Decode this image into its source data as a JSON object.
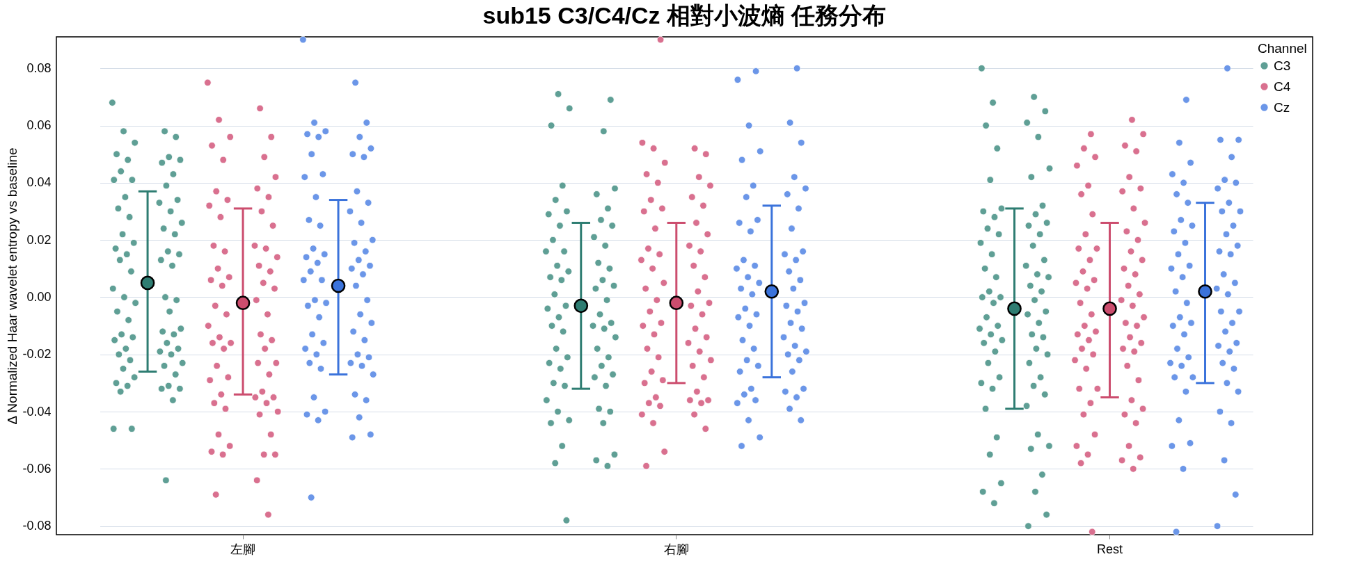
{
  "chart_data": {
    "type": "scatter",
    "title": "sub15 C3/C4/Cz 相對小波熵 任務分布",
    "ylabel": "Δ Normalized Haar wavelet entropy vs baseline",
    "legend_title": "Channel",
    "legend": "top right",
    "grid": "y",
    "marker": "circle",
    "categories": [
      "左腳",
      "右腳",
      "Rest"
    ],
    "ylim": [
      -0.083,
      0.091
    ],
    "yticks": [
      -0.08,
      -0.06,
      -0.04,
      -0.02,
      {
        "value": 0,
        "label": "0.00"
      },
      0.02,
      0.04,
      0.06,
      0.08
    ],
    "series": [
      {
        "name": "C3",
        "color": "#5f9f95",
        "x": [
          "左腳",
          "左腳",
          "左腳",
          "左腳",
          "左腳",
          "左腳",
          "左腳",
          "左腳",
          "左腳",
          "左腳",
          "左腳",
          "左腳",
          "左腳",
          "左腳",
          "左腳",
          "左腳",
          "左腳",
          "左腳",
          "左腳",
          "左腳",
          "左腳",
          "左腳",
          "左腳",
          "左腳",
          "左腳",
          "左腳",
          "左腳",
          "左腳",
          "左腳",
          "左腳",
          "左腳",
          "左腳",
          "左腳",
          "左腳",
          "左腳",
          "左腳",
          "左腳",
          "左腳",
          "左腳",
          "左腳",
          "左腳",
          "左腳",
          "左腳",
          "左腳",
          "左腳",
          "左腳",
          "左腳",
          "左腳",
          "左腳",
          "左腳",
          "左腳",
          "左腳",
          "左腳",
          "左腳",
          "左腳",
          "左腳",
          "左腳",
          "左腳",
          "左腳",
          "左腳",
          "左腳",
          "左腳",
          "左腳",
          "左腳",
          "左腳",
          "左腳",
          "左腳",
          "左腳",
          "左腳",
          "左腳",
          "右腳",
          "右腳",
          "右腳",
          "右腳",
          "右腳",
          "右腳",
          "右腳",
          "右腳",
          "右腳",
          "右腳",
          "右腳",
          "右腳",
          "右腳",
          "右腳",
          "右腳",
          "右腳",
          "右腳",
          "右腳",
          "右腳",
          "右腳",
          "右腳",
          "右腳",
          "右腳",
          "右腳",
          "右腳",
          "右腳",
          "右腳",
          "右腳",
          "右腳",
          "右腳",
          "右腳",
          "右腳",
          "右腳",
          "右腳",
          "右腳",
          "右腳",
          "右腳",
          "右腳",
          "右腳",
          "右腳",
          "右腳",
          "右腳",
          "右腳",
          "右腳",
          "右腳",
          "右腳",
          "右腳",
          "右腳",
          "右腳",
          "右腳",
          "右腳",
          "右腳",
          "右腳",
          "右腳",
          "右腳",
          "右腳",
          "右腳",
          "右腳",
          "右腳",
          "右腳",
          "右腳",
          "右腳",
          "右腳",
          "右腳",
          "右腳",
          "右腳",
          "Rest",
          "Rest",
          "Rest",
          "Rest",
          "Rest",
          "Rest",
          "Rest",
          "Rest",
          "Rest",
          "Rest",
          "Rest",
          "Rest",
          "Rest",
          "Rest",
          "Rest",
          "Rest",
          "Rest",
          "Rest",
          "Rest",
          "Rest",
          "Rest",
          "Rest",
          "Rest",
          "Rest",
          "Rest",
          "Rest",
          "Rest",
          "Rest",
          "Rest",
          "Rest",
          "Rest",
          "Rest",
          "Rest",
          "Rest",
          "Rest",
          "Rest",
          "Rest",
          "Rest",
          "Rest",
          "Rest",
          "Rest",
          "Rest",
          "Rest",
          "Rest",
          "Rest",
          "Rest",
          "Rest",
          "Rest",
          "Rest",
          "Rest",
          "Rest",
          "Rest",
          "Rest",
          "Rest",
          "Rest",
          "Rest",
          "Rest",
          "Rest",
          "Rest",
          "Rest",
          "Rest",
          "Rest",
          "Rest",
          "Rest",
          "Rest",
          "Rest",
          "Rest",
          "Rest",
          "Rest",
          "Rest",
          "Rest",
          "Rest",
          "Rest"
        ],
        "values": [
          0.068,
          0.058,
          0.058,
          0.056,
          0.054,
          0.05,
          0.049,
          0.048,
          0.048,
          0.047,
          0.044,
          0.043,
          0.041,
          0.041,
          0.039,
          0.035,
          0.034,
          0.033,
          0.031,
          0.03,
          0.028,
          0.026,
          0.024,
          0.022,
          0.022,
          0.019,
          0.017,
          0.016,
          0.015,
          0.015,
          0.013,
          0.013,
          0.011,
          0.009,
          0.003,
          0.0,
          0.0,
          -0.001,
          -0.002,
          -0.005,
          -0.005,
          -0.008,
          -0.011,
          -0.012,
          -0.013,
          -0.013,
          -0.014,
          -0.015,
          -0.016,
          -0.018,
          -0.018,
          -0.019,
          -0.02,
          -0.02,
          -0.022,
          -0.023,
          -0.024,
          -0.025,
          -0.027,
          -0.028,
          -0.03,
          -0.031,
          -0.031,
          -0.032,
          -0.032,
          -0.033,
          -0.036,
          -0.046,
          -0.046,
          -0.064,
          0.071,
          0.069,
          0.066,
          0.06,
          0.058,
          0.039,
          0.038,
          0.036,
          0.034,
          0.031,
          0.03,
          0.029,
          0.027,
          0.025,
          0.025,
          0.021,
          0.02,
          0.018,
          0.016,
          0.016,
          0.012,
          0.011,
          0.01,
          0.009,
          0.007,
          0.006,
          0.006,
          0.004,
          0.003,
          0.001,
          -0.001,
          -0.003,
          -0.004,
          -0.006,
          -0.007,
          -0.009,
          -0.01,
          -0.01,
          -0.011,
          -0.012,
          -0.014,
          -0.018,
          -0.018,
          -0.021,
          -0.021,
          -0.023,
          -0.024,
          -0.025,
          -0.027,
          -0.028,
          -0.03,
          -0.031,
          -0.031,
          -0.036,
          -0.039,
          -0.04,
          -0.04,
          -0.043,
          -0.044,
          -0.044,
          -0.052,
          -0.055,
          -0.057,
          -0.058,
          -0.059,
          -0.078,
          0.08,
          0.07,
          0.068,
          0.065,
          0.061,
          0.06,
          0.056,
          0.052,
          0.045,
          0.042,
          0.041,
          0.032,
          0.031,
          0.03,
          0.029,
          0.028,
          0.026,
          0.025,
          0.024,
          0.022,
          0.022,
          0.019,
          0.018,
          0.015,
          0.013,
          0.011,
          0.01,
          0.008,
          0.007,
          0.007,
          0.004,
          0.002,
          0.002,
          0.0,
          0.0,
          -0.001,
          -0.002,
          -0.005,
          -0.006,
          -0.007,
          -0.009,
          -0.01,
          -0.011,
          -0.013,
          -0.013,
          -0.014,
          -0.015,
          -0.016,
          -0.018,
          -0.019,
          -0.02,
          -0.023,
          -0.023,
          -0.028,
          -0.028,
          -0.03,
          -0.031,
          -0.032,
          -0.034,
          -0.038,
          -0.039,
          -0.048,
          -0.049,
          -0.052,
          -0.053,
          -0.055,
          -0.062,
          -0.065,
          -0.068,
          -0.068,
          -0.072,
          -0.076,
          -0.08
        ]
      },
      {
        "name": "C4",
        "color": "#d9708f",
        "x": [
          "左腳",
          "左腳",
          "左腳",
          "左腳",
          "左腳",
          "左腳",
          "左腳",
          "左腳",
          "左腳",
          "左腳",
          "左腳",
          "左腳",
          "左腳",
          "左腳",
          "左腳",
          "左腳",
          "左腳",
          "左腳",
          "左腳",
          "左腳",
          "左腳",
          "左腳",
          "左腳",
          "左腳",
          "左腳",
          "左腳",
          "左腳",
          "左腳",
          "左腳",
          "左腳",
          "左腳",
          "左腳",
          "左腳",
          "左腳",
          "左腳",
          "左腳",
          "左腳",
          "左腳",
          "左腳",
          "左腳",
          "左腳",
          "左腳",
          "左腳",
          "左腳",
          "左腳",
          "左腳",
          "左腳",
          "左腳",
          "左腳",
          "左腳",
          "左腳",
          "左腳",
          "左腳",
          "左腳",
          "左腳",
          "左腳",
          "左腳",
          "左腳",
          "左腳",
          "左腳",
          "左腳",
          "左腳",
          "左腳",
          "左腳",
          "左腳",
          "左腳",
          "左腳",
          "右腳",
          "右腳",
          "右腳",
          "右腳",
          "右腳",
          "右腳",
          "右腳",
          "右腳",
          "右腳",
          "右腳",
          "右腳",
          "右腳",
          "右腳",
          "右腳",
          "右腳",
          "右腳",
          "右腳",
          "右腳",
          "右腳",
          "右腳",
          "右腳",
          "右腳",
          "右腳",
          "右腳",
          "右腳",
          "右腳",
          "右腳",
          "右腳",
          "右腳",
          "右腳",
          "右腳",
          "右腳",
          "右腳",
          "右腳",
          "右腳",
          "右腳",
          "右腳",
          "右腳",
          "右腳",
          "右腳",
          "右腳",
          "右腳",
          "右腳",
          "右腳",
          "右腳",
          "右腳",
          "右腳",
          "右腳",
          "右腳",
          "右腳",
          "右腳",
          "右腳",
          "右腳",
          "右腳",
          "右腳",
          "右腳",
          "右腳",
          "右腳",
          "右腳",
          "右腳",
          "右腳",
          "右腳",
          "Rest",
          "Rest",
          "Rest",
          "Rest",
          "Rest",
          "Rest",
          "Rest",
          "Rest",
          "Rest",
          "Rest",
          "Rest",
          "Rest",
          "Rest",
          "Rest",
          "Rest",
          "Rest",
          "Rest",
          "Rest",
          "Rest",
          "Rest",
          "Rest",
          "Rest",
          "Rest",
          "Rest",
          "Rest",
          "Rest",
          "Rest",
          "Rest",
          "Rest",
          "Rest",
          "Rest",
          "Rest",
          "Rest",
          "Rest",
          "Rest",
          "Rest",
          "Rest",
          "Rest",
          "Rest",
          "Rest",
          "Rest",
          "Rest",
          "Rest",
          "Rest",
          "Rest",
          "Rest",
          "Rest",
          "Rest",
          "Rest",
          "Rest",
          "Rest",
          "Rest",
          "Rest",
          "Rest",
          "Rest",
          "Rest",
          "Rest",
          "Rest",
          "Rest",
          "Rest",
          "Rest",
          "Rest",
          "Rest",
          "Rest",
          "Rest",
          "Rest",
          "Rest",
          "Rest",
          "Rest",
          "Rest"
        ],
        "values": [
          0.075,
          0.066,
          0.062,
          0.056,
          0.056,
          0.053,
          0.049,
          0.048,
          0.042,
          0.038,
          0.037,
          0.035,
          0.034,
          0.032,
          0.03,
          0.028,
          0.025,
          0.018,
          0.018,
          0.017,
          0.016,
          0.014,
          0.011,
          0.01,
          0.009,
          0.007,
          0.006,
          0.005,
          0.004,
          0.003,
          -0.001,
          -0.003,
          -0.006,
          -0.006,
          -0.01,
          -0.013,
          -0.014,
          -0.015,
          -0.016,
          -0.016,
          -0.018,
          -0.018,
          -0.023,
          -0.023,
          -0.024,
          -0.027,
          -0.028,
          -0.029,
          -0.033,
          -0.034,
          -0.035,
          -0.035,
          -0.037,
          -0.037,
          -0.039,
          -0.04,
          -0.041,
          -0.048,
          -0.048,
          -0.052,
          -0.054,
          -0.055,
          -0.055,
          -0.055,
          -0.064,
          -0.069,
          -0.076,
          0.09,
          0.054,
          0.052,
          0.052,
          0.05,
          0.047,
          0.043,
          0.042,
          0.04,
          0.039,
          0.035,
          0.034,
          0.032,
          0.031,
          0.03,
          0.026,
          0.024,
          0.022,
          0.018,
          0.017,
          0.016,
          0.015,
          0.013,
          0.011,
          0.01,
          0.007,
          0.005,
          0.003,
          0.002,
          -0.001,
          -0.002,
          -0.003,
          -0.005,
          -0.006,
          -0.009,
          -0.01,
          -0.011,
          -0.013,
          -0.014,
          -0.016,
          -0.018,
          -0.019,
          -0.021,
          -0.022,
          -0.024,
          -0.026,
          -0.028,
          -0.029,
          -0.03,
          -0.033,
          -0.035,
          -0.036,
          -0.036,
          -0.037,
          -0.037,
          -0.038,
          -0.041,
          -0.041,
          -0.044,
          -0.046,
          -0.054,
          -0.059,
          0.062,
          0.057,
          0.057,
          0.053,
          0.052,
          0.051,
          0.049,
          0.046,
          0.042,
          0.039,
          0.038,
          0.037,
          0.036,
          0.031,
          0.029,
          0.026,
          0.023,
          0.022,
          0.02,
          0.017,
          0.017,
          0.016,
          0.013,
          0.013,
          0.01,
          0.009,
          0.008,
          0.006,
          0.005,
          0.004,
          0.003,
          0.001,
          -0.001,
          -0.002,
          -0.003,
          -0.006,
          -0.007,
          -0.009,
          -0.01,
          -0.01,
          -0.012,
          -0.013,
          -0.014,
          -0.015,
          -0.016,
          -0.018,
          -0.018,
          -0.019,
          -0.02,
          -0.022,
          -0.024,
          -0.025,
          -0.029,
          -0.032,
          -0.032,
          -0.036,
          -0.037,
          -0.039,
          -0.041,
          -0.041,
          -0.044,
          -0.048,
          -0.052,
          -0.052,
          -0.055,
          -0.056,
          -0.057,
          -0.058,
          -0.06,
          -0.082
        ]
      },
      {
        "name": "Cz",
        "color": "#6b96e8",
        "x": [
          "左腳",
          "左腳",
          "左腳",
          "左腳",
          "左腳",
          "左腳",
          "左腳",
          "左腳",
          "左腳",
          "左腳",
          "左腳",
          "左腳",
          "左腳",
          "左腳",
          "左腳",
          "左腳",
          "左腳",
          "左腳",
          "左腳",
          "左腳",
          "左腳",
          "左腳",
          "左腳",
          "左腳",
          "左腳",
          "左腳",
          "左腳",
          "左腳",
          "左腳",
          "左腳",
          "左腳",
          "左腳",
          "左腳",
          "左腳",
          "左腳",
          "左腳",
          "左腳",
          "左腳",
          "左腳",
          "左腳",
          "左腳",
          "左腳",
          "左腳",
          "左腳",
          "左腳",
          "左腳",
          "左腳",
          "左腳",
          "左腳",
          "左腳",
          "左腳",
          "左腳",
          "左腳",
          "左腳",
          "左腳",
          "左腳",
          "左腳",
          "左腳",
          "左腳",
          "左腳",
          "左腳",
          "左腳",
          "左腳",
          "左腳",
          "左腳",
          "左腳",
          "右腳",
          "右腳",
          "右腳",
          "右腳",
          "右腳",
          "右腳",
          "右腳",
          "右腳",
          "右腳",
          "右腳",
          "右腳",
          "右腳",
          "右腳",
          "右腳",
          "右腳",
          "右腳",
          "右腳",
          "右腳",
          "右腳",
          "右腳",
          "右腳",
          "右腳",
          "右腳",
          "右腳",
          "右腳",
          "右腳",
          "右腳",
          "右腳",
          "右腳",
          "右腳",
          "右腳",
          "右腳",
          "右腳",
          "右腳",
          "右腳",
          "右腳",
          "右腳",
          "右腳",
          "右腳",
          "右腳",
          "右腳",
          "右腳",
          "右腳",
          "右腳",
          "右腳",
          "右腳",
          "右腳",
          "右腳",
          "右腳",
          "右腳",
          "右腳",
          "右腳",
          "右腳",
          "右腳",
          "右腳",
          "右腳",
          "右腳",
          "右腳",
          "右腳",
          "右腳",
          "右腳",
          "右腳",
          "右腳",
          "Rest",
          "Rest",
          "Rest",
          "Rest",
          "Rest",
          "Rest",
          "Rest",
          "Rest",
          "Rest",
          "Rest",
          "Rest",
          "Rest",
          "Rest",
          "Rest",
          "Rest",
          "Rest",
          "Rest",
          "Rest",
          "Rest",
          "Rest",
          "Rest",
          "Rest",
          "Rest",
          "Rest",
          "Rest",
          "Rest",
          "Rest",
          "Rest",
          "Rest",
          "Rest",
          "Rest",
          "Rest",
          "Rest",
          "Rest",
          "Rest",
          "Rest",
          "Rest",
          "Rest",
          "Rest",
          "Rest",
          "Rest",
          "Rest",
          "Rest",
          "Rest",
          "Rest",
          "Rest",
          "Rest",
          "Rest",
          "Rest",
          "Rest",
          "Rest",
          "Rest",
          "Rest",
          "Rest",
          "Rest",
          "Rest",
          "Rest",
          "Rest",
          "Rest",
          "Rest",
          "Rest",
          "Rest",
          "Rest",
          "Rest",
          "Rest",
          "Rest",
          "Rest",
          "Rest"
        ],
        "values": [
          0.09,
          0.075,
          0.061,
          0.061,
          0.058,
          0.057,
          0.056,
          0.056,
          0.052,
          0.05,
          0.05,
          0.049,
          0.043,
          0.042,
          0.037,
          0.035,
          0.033,
          0.03,
          0.027,
          0.026,
          0.025,
          0.02,
          0.019,
          0.017,
          0.016,
          0.015,
          0.014,
          0.013,
          0.012,
          0.011,
          0.01,
          0.009,
          0.008,
          0.006,
          0.006,
          0.004,
          -0.001,
          -0.001,
          -0.002,
          -0.003,
          -0.006,
          -0.007,
          -0.009,
          -0.012,
          -0.013,
          -0.015,
          -0.016,
          -0.018,
          -0.02,
          -0.02,
          -0.021,
          -0.023,
          -0.023,
          -0.024,
          -0.025,
          -0.027,
          -0.034,
          -0.035,
          -0.036,
          -0.04,
          -0.041,
          -0.042,
          -0.043,
          -0.048,
          -0.049,
          -0.07,
          0.08,
          0.079,
          0.076,
          0.061,
          0.06,
          0.054,
          0.051,
          0.048,
          0.042,
          0.039,
          0.038,
          0.036,
          0.035,
          0.031,
          0.027,
          0.026,
          0.024,
          0.023,
          0.016,
          0.015,
          0.013,
          0.013,
          0.011,
          0.01,
          0.009,
          0.007,
          0.006,
          0.005,
          0.003,
          0.003,
          0.001,
          -0.002,
          -0.003,
          -0.004,
          -0.005,
          -0.006,
          -0.007,
          -0.009,
          -0.01,
          -0.011,
          -0.014,
          -0.015,
          -0.017,
          -0.018,
          -0.019,
          -0.02,
          -0.022,
          -0.022,
          -0.024,
          -0.026,
          -0.026,
          -0.032,
          -0.032,
          -0.033,
          -0.034,
          -0.035,
          -0.036,
          -0.037,
          -0.039,
          -0.043,
          -0.043,
          -0.049,
          -0.052,
          0.08,
          0.069,
          0.055,
          0.055,
          0.054,
          0.049,
          0.047,
          0.043,
          0.041,
          0.04,
          0.04,
          0.038,
          0.036,
          0.033,
          0.033,
          0.03,
          0.03,
          0.027,
          0.025,
          0.025,
          0.023,
          0.022,
          0.019,
          0.018,
          0.016,
          0.015,
          0.015,
          0.011,
          0.01,
          0.008,
          0.007,
          0.005,
          0.003,
          0.002,
          0.001,
          -0.002,
          -0.005,
          -0.005,
          -0.007,
          -0.009,
          -0.009,
          -0.01,
          -0.012,
          -0.013,
          -0.016,
          -0.017,
          -0.018,
          -0.019,
          -0.021,
          -0.023,
          -0.023,
          -0.024,
          -0.025,
          -0.028,
          -0.028,
          -0.03,
          -0.033,
          -0.033,
          -0.04,
          -0.043,
          -0.044,
          -0.051,
          -0.052,
          -0.057,
          -0.06,
          -0.069,
          -0.08,
          -0.082
        ]
      },
      {
        "color": "#2e7d72",
        "x": [
          "左腳",
          "右腳",
          "Rest"
        ],
        "values": [
          0.005,
          -0.003,
          -0.004
        ],
        "errors": [
          [
            -0.026,
            0.037
          ],
          [
            -0.032,
            0.026
          ],
          [
            -0.039,
            0.031
          ]
        ]
      },
      {
        "color": "#cc4d6e",
        "x": [
          "左腳",
          "右腳",
          "Rest"
        ],
        "values": [
          -0.002,
          -0.002,
          -0.004
        ],
        "errors": [
          [
            -0.034,
            0.031
          ],
          [
            -0.03,
            0.026
          ],
          [
            -0.035,
            0.026
          ]
        ]
      },
      {
        "color": "#3b73db",
        "x": [
          "左腳",
          "右腳",
          "Rest"
        ],
        "values": [
          0.004,
          0.002,
          0.002
        ],
        "errors": [
          [
            -0.027,
            0.034
          ],
          [
            -0.028,
            0.032
          ],
          [
            -0.03,
            0.033
          ]
        ]
      }
    ]
  }
}
